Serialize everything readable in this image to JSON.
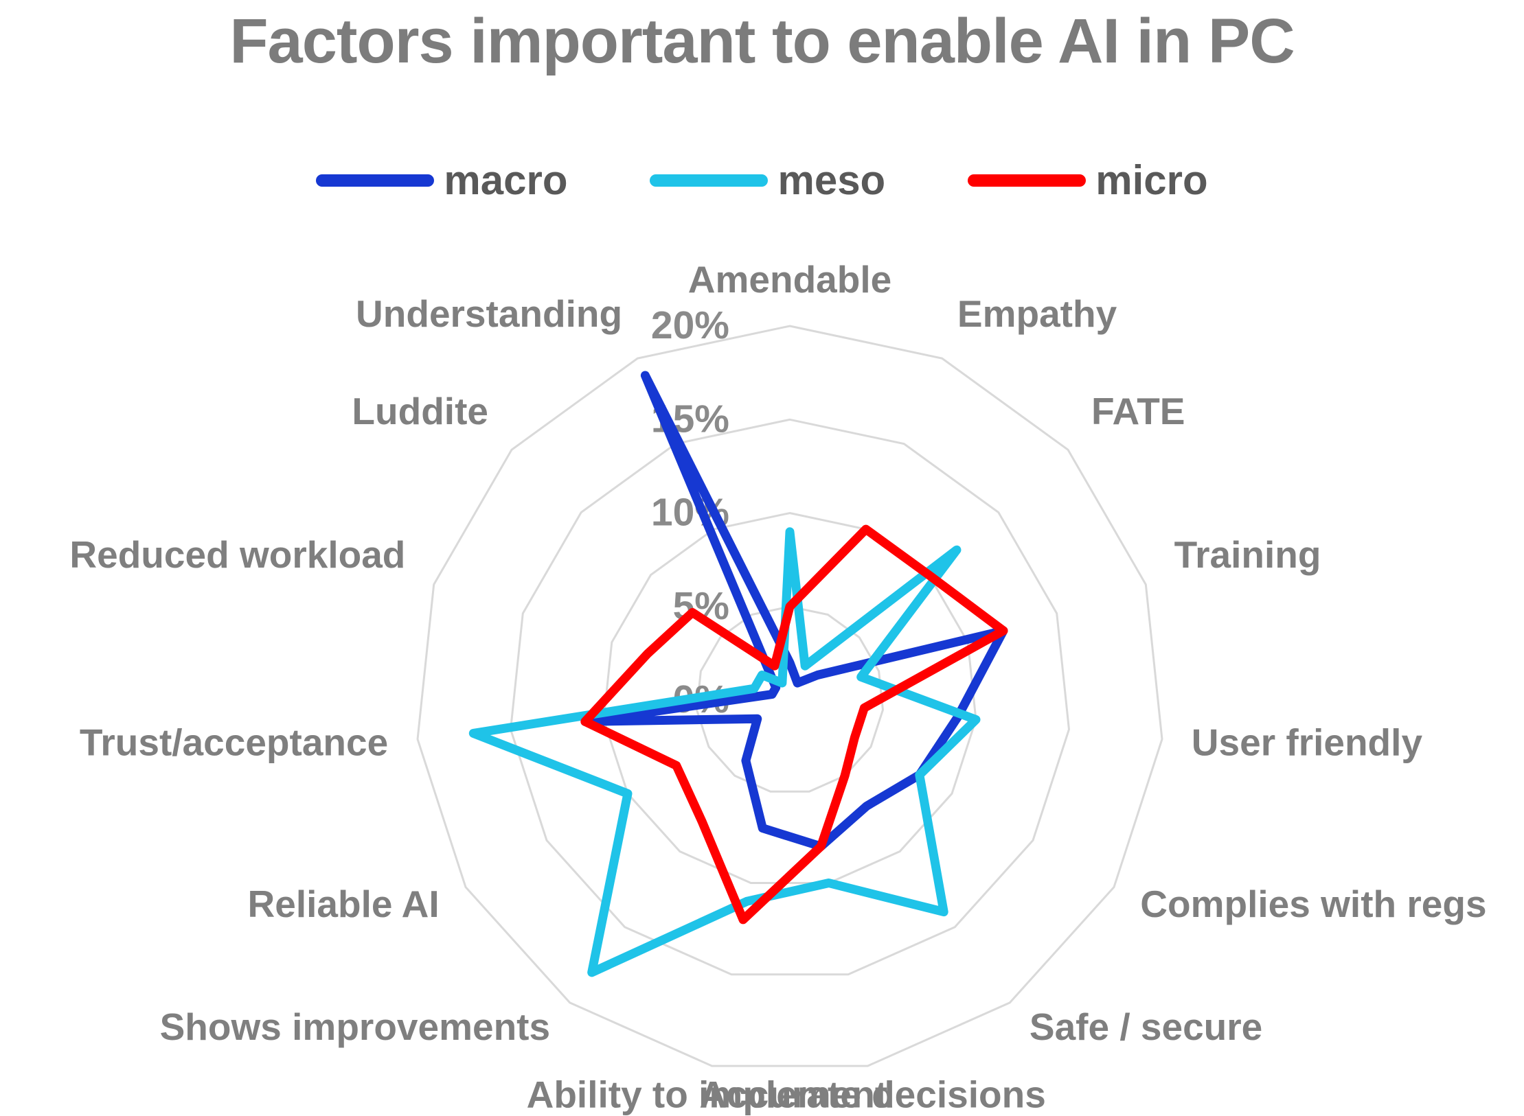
{
  "title": "Factors important to enable AI in PC",
  "chart_data": {
    "type": "radar",
    "title": "Factors important to enable AI in PC",
    "categories": [
      "Amendable",
      "Empathy",
      "FATE",
      "Training",
      "User friendly",
      "Complies with regs",
      "Safe / secure",
      "Accurate decisions",
      "Ability to implement",
      "Shows improvements",
      "Reliable AI",
      "Trust/acceptance",
      "Reduced workload",
      "Luddite",
      "Understanding"
    ],
    "series": [
      {
        "name": "macro",
        "color": "#1638D2",
        "values": [
          2,
          1,
          2,
          12,
          9,
          8,
          7,
          8,
          7,
          4,
          2,
          11,
          1,
          1,
          19
        ]
      },
      {
        "name": "meso",
        "color": "#1FC3E8",
        "values": [
          9,
          2,
          12,
          4,
          10,
          8,
          14,
          10,
          11,
          18,
          10,
          17,
          2,
          2,
          1
        ]
      },
      {
        "name": "micro",
        "color": "#FF0000",
        "values": [
          5,
          10,
          10,
          12,
          4,
          4,
          5,
          8,
          12,
          8,
          7,
          11,
          8,
          7,
          2
        ]
      }
    ],
    "axis": {
      "min": 0,
      "max": 20,
      "tick_step": 5,
      "tick_labels": [
        "0%",
        "5%",
        "10%",
        "15%",
        "20%"
      ]
    },
    "grid": true,
    "legend_position": "top"
  }
}
